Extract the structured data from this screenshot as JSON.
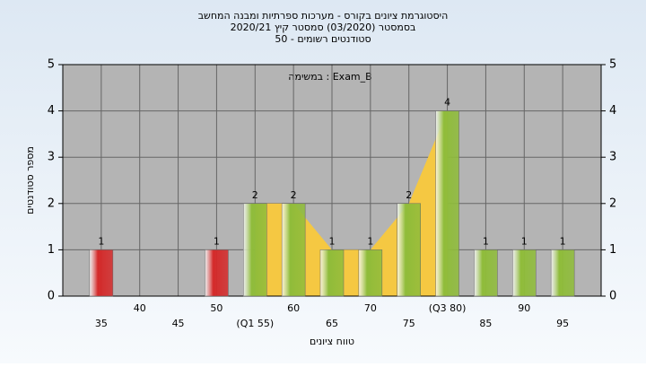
{
  "chart_data": {
    "type": "bar",
    "title": "היסטוגרמת ציונים בקורס - מערכות ספרתיות ומבנה המחשב",
    "subtitle": "בסמסטר  (03/2020)  סמסטר קיץ  2020/21",
    "subtitle2": "סטודנטים רשומים - 50",
    "annotation": "במשימה : Exam_B",
    "x_label": "טווח ציונים",
    "y_label": "מספר סטודנטים",
    "categories": [
      "35",
      "40",
      "45",
      "50",
      "(Q1 55)",
      "60",
      "65",
      "70",
      "75",
      "(Q3 80)",
      "85",
      "90",
      "95"
    ],
    "values": [
      1,
      0,
      0,
      1,
      2,
      2,
      1,
      1,
      2,
      4,
      1,
      1,
      1
    ],
    "colors": [
      "#d42a2a",
      "#8fbc3a",
      "#8fbc3a",
      "#d42a2a",
      "#8fbc3a",
      "#8fbc3a",
      "#8fbc3a",
      "#8fbc3a",
      "#8fbc3a",
      "#8fbc3a",
      "#8fbc3a",
      "#8fbc3a",
      "#8fbc3a"
    ],
    "area_color": "#f5c842",
    "ylim": [
      0,
      5
    ],
    "yticks": [
      0,
      1,
      2,
      3,
      4,
      5
    ],
    "y2lim": [
      0,
      5
    ],
    "y2ticks": [
      0,
      1,
      2,
      3,
      4,
      5
    ],
    "grid": true
  }
}
